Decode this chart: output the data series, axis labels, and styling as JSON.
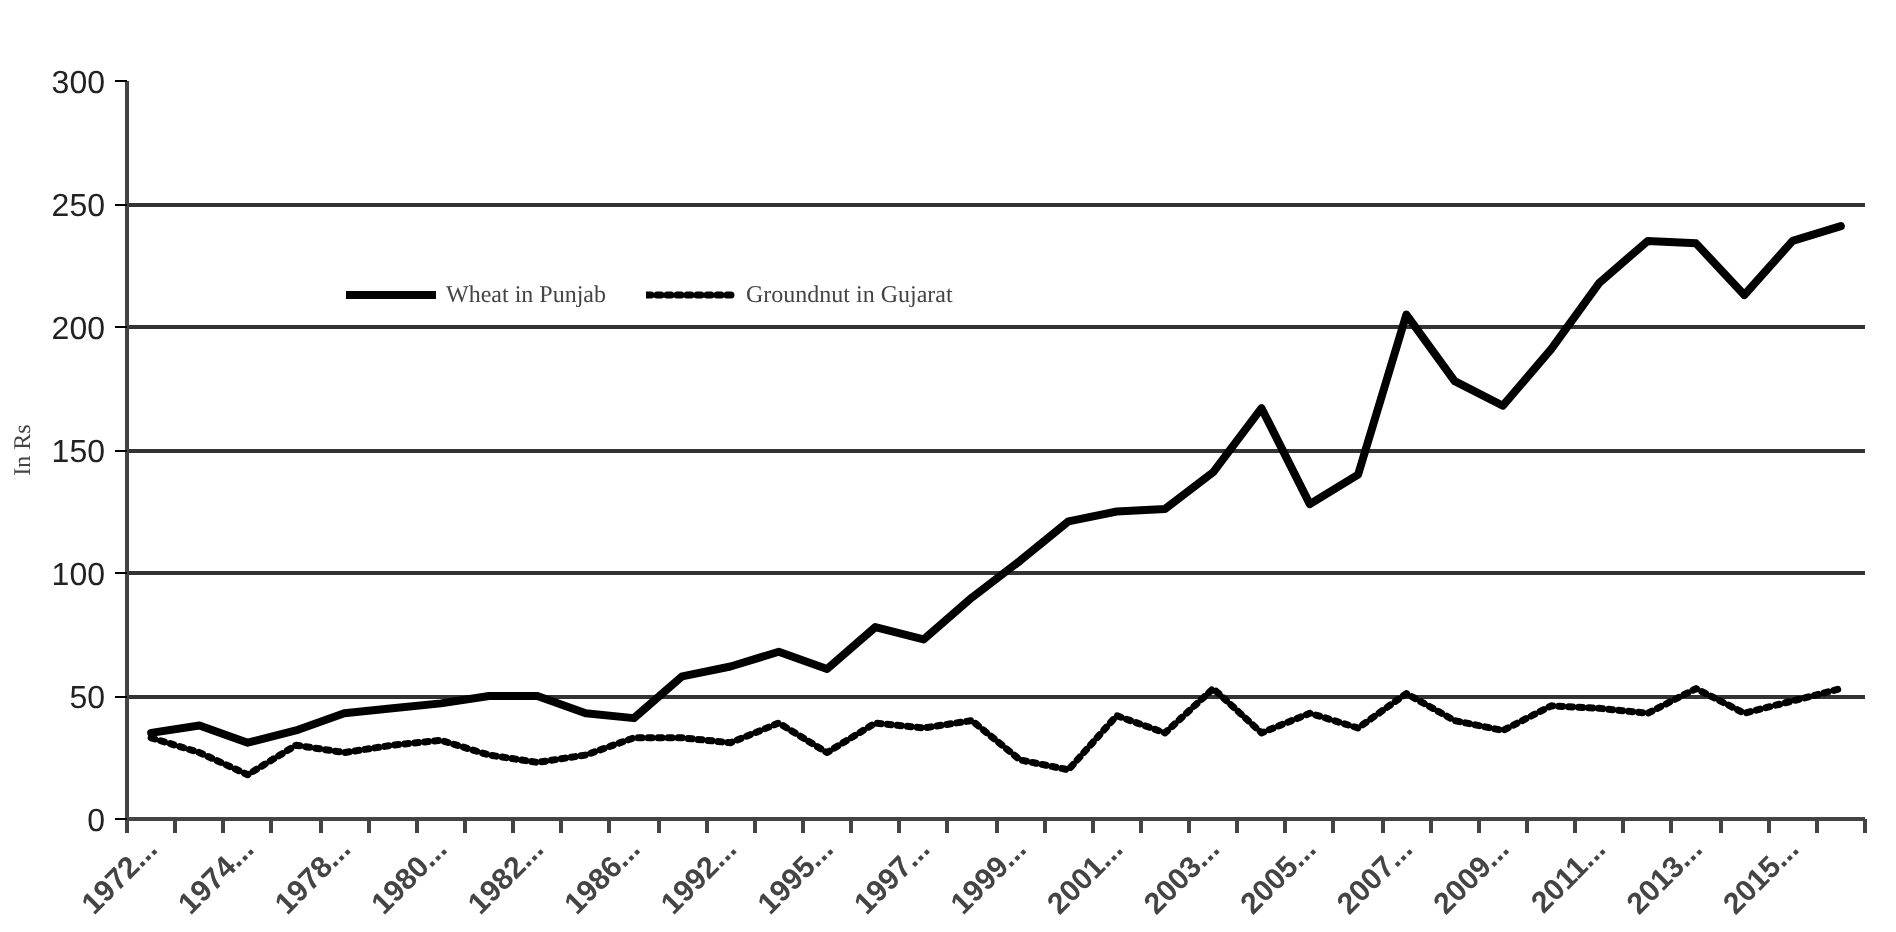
{
  "chart_data": {
    "type": "line",
    "ylabel": "In Rs",
    "categories": [
      "1972...",
      null,
      "1974...",
      null,
      "1978...",
      null,
      "1980...",
      null,
      "1982...",
      null,
      "1986...",
      null,
      "1992...",
      null,
      "1995...",
      null,
      "1997...",
      null,
      "1999...",
      null,
      "2001...",
      null,
      "2003...",
      null,
      "2005...",
      null,
      "2007...",
      null,
      "2009...",
      null,
      "2011...",
      null,
      "2013...",
      null,
      "2015...",
      null
    ],
    "series": [
      {
        "name": "Wheat in Punjab",
        "color": "#000000",
        "line_style": "solid",
        "values": [
          35,
          38,
          31,
          36,
          43,
          45,
          47,
          50,
          50,
          43,
          41,
          58,
          62,
          68,
          61,
          78,
          73,
          90,
          105,
          121,
          125,
          126,
          141,
          167,
          128,
          140,
          205,
          178,
          168,
          191,
          218,
          235,
          234,
          213,
          235,
          241
        ]
      },
      {
        "name": "Groundnut in Gujarat",
        "color": "#000000",
        "line_style": "dotted",
        "values": [
          33,
          27,
          18,
          30,
          27,
          30,
          32,
          26,
          23,
          26,
          33,
          33,
          31,
          39,
          27,
          39,
          37,
          40,
          24,
          20,
          42,
          35,
          53,
          35,
          43,
          37,
          51,
          40,
          36,
          46,
          45,
          43,
          53,
          43,
          48,
          53
        ]
      }
    ],
    "ylim": [
      0,
      300
    ],
    "yticks": [
      0,
      50,
      100,
      150,
      200,
      250,
      300
    ],
    "grid": "y",
    "legend": "top left",
    "marker": "none"
  }
}
